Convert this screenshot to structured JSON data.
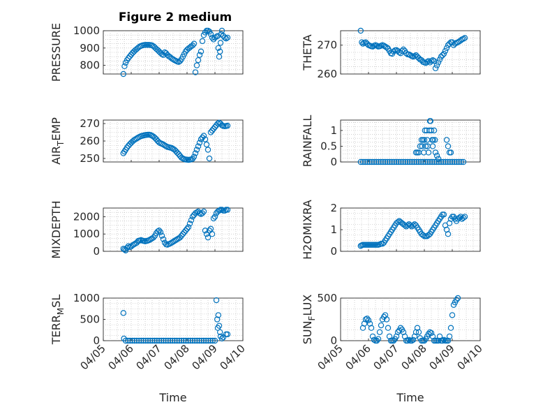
{
  "figure": {
    "title": "Figure 2 medium",
    "color": "#0072BD"
  },
  "chart_data": [
    {
      "type": "scatter",
      "marker": "circle",
      "grid": true,
      "ylabel": "PRESSURE",
      "ylim": [
        750,
        1000
      ],
      "yticks": [
        800,
        900,
        1000
      ],
      "xlim": [
        0,
        5
      ],
      "xticks": [
        0,
        1,
        2,
        3,
        4,
        5
      ],
      "xtick_labels": [],
      "xlabel": "",
      "x": [
        0.72,
        0.76,
        0.8,
        0.85,
        0.9,
        0.95,
        1.0,
        1.05,
        1.1,
        1.15,
        1.2,
        1.25,
        1.3,
        1.35,
        1.4,
        1.45,
        1.5,
        1.55,
        1.6,
        1.65,
        1.7,
        1.75,
        1.8,
        1.85,
        1.9,
        1.95,
        2.0,
        2.05,
        2.1,
        2.15,
        2.2,
        2.25,
        2.3,
        2.35,
        2.4,
        2.45,
        2.5,
        2.55,
        2.6,
        2.65,
        2.7,
        2.75,
        2.8,
        2.85,
        2.9,
        2.95,
        3.0,
        3.05,
        3.1,
        3.15,
        3.2,
        3.25,
        3.3,
        3.35,
        3.4,
        3.45,
        3.5,
        3.55,
        3.6,
        3.65,
        3.7,
        3.75,
        3.8,
        3.85,
        3.9,
        3.95,
        4.0,
        4.05,
        4.1,
        4.12,
        4.15,
        4.18,
        4.2,
        4.22,
        4.25,
        4.3,
        4.35,
        4.4,
        4.45
      ],
      "y": [
        750,
        795,
        815,
        830,
        842,
        852,
        862,
        872,
        880,
        888,
        895,
        902,
        908,
        912,
        915,
        917,
        918,
        918,
        918,
        918,
        917,
        915,
        910,
        903,
        895,
        888,
        880,
        872,
        865,
        860,
        875,
        870,
        860,
        852,
        847,
        840,
        835,
        830,
        826,
        822,
        820,
        825,
        835,
        850,
        865,
        880,
        890,
        897,
        903,
        910,
        915,
        925,
        760,
        800,
        830,
        860,
        880,
        940,
        975,
        990,
        1000,
        1000,
        995,
        980,
        960,
        950,
        960,
        965,
        970,
        900,
        850,
        880,
        930,
        980,
        1000,
        970,
        960,
        955,
        960
      ],
      "y_orig": []
    },
    {
      "type": "scatter",
      "marker": "circle",
      "grid": true,
      "ylabel": "THETA",
      "ylim": [
        260,
        275
      ],
      "yticks": [
        260,
        270
      ],
      "xlim": [
        0,
        5
      ],
      "xticks": [
        0,
        1,
        2,
        3,
        4,
        5
      ],
      "xtick_labels": [],
      "xlabel": "",
      "x": [
        0.72,
        0.76,
        0.8,
        0.85,
        0.9,
        0.95,
        1.0,
        1.05,
        1.1,
        1.15,
        1.2,
        1.25,
        1.3,
        1.35,
        1.4,
        1.45,
        1.5,
        1.55,
        1.6,
        1.65,
        1.7,
        1.75,
        1.8,
        1.85,
        1.9,
        1.95,
        2.0,
        2.05,
        2.1,
        2.15,
        2.2,
        2.25,
        2.3,
        2.35,
        2.4,
        2.45,
        2.5,
        2.55,
        2.6,
        2.65,
        2.7,
        2.75,
        2.8,
        2.85,
        2.9,
        2.95,
        3.0,
        3.05,
        3.1,
        3.15,
        3.2,
        3.25,
        3.3,
        3.35,
        3.4,
        3.45,
        3.5,
        3.55,
        3.6,
        3.65,
        3.7,
        3.75,
        3.8,
        3.85,
        3.9,
        3.95,
        4.0,
        4.05,
        4.1,
        4.15,
        4.2,
        4.25,
        4.3,
        4.35,
        4.4,
        4.45
      ],
      "y": [
        275,
        271,
        270.5,
        270.8,
        271,
        270.5,
        270,
        269.8,
        269.6,
        269.5,
        269.8,
        270,
        269.8,
        269.5,
        269.6,
        269.8,
        270,
        269.8,
        269.5,
        269.2,
        268.8,
        268,
        267.2,
        267,
        267.8,
        268.2,
        268.3,
        268,
        267.5,
        267.2,
        268,
        268.5,
        268,
        267.2,
        266.8,
        266.8,
        266.5,
        266.2,
        266,
        266.2,
        266.5,
        266,
        265.5,
        265,
        264.8,
        264.2,
        264,
        263.8,
        264.2,
        264.5,
        264,
        264.5,
        264.8,
        264.5,
        262,
        263,
        264,
        265,
        266,
        266.5,
        267,
        268,
        269,
        270,
        270.5,
        271,
        271,
        270,
        270.5,
        270.8,
        271,
        271.3,
        271.6,
        272,
        272.2,
        272.5
      ]
    },
    {
      "type": "scatter",
      "marker": "circle",
      "grid": true,
      "ylabel": "AIR",
      "ylabel_sub": "T",
      "ylabel_rest": "EMP",
      "ylim": [
        248,
        272
      ],
      "yticks": [
        250,
        260,
        270
      ],
      "xlim": [
        0,
        5
      ],
      "xticks": [
        0,
        1,
        2,
        3,
        4,
        5
      ],
      "xtick_labels": [],
      "xlabel": "",
      "x": [
        0.72,
        0.76,
        0.8,
        0.85,
        0.9,
        0.95,
        1.0,
        1.05,
        1.1,
        1.15,
        1.2,
        1.25,
        1.3,
        1.35,
        1.4,
        1.45,
        1.5,
        1.55,
        1.6,
        1.65,
        1.7,
        1.75,
        1.8,
        1.85,
        1.9,
        1.95,
        2.0,
        2.05,
        2.1,
        2.15,
        2.2,
        2.25,
        2.3,
        2.35,
        2.4,
        2.45,
        2.5,
        2.55,
        2.6,
        2.65,
        2.7,
        2.75,
        2.8,
        2.85,
        2.9,
        2.95,
        3.0,
        3.05,
        3.1,
        3.15,
        3.2,
        3.25,
        3.3,
        3.35,
        3.4,
        3.45,
        3.5,
        3.55,
        3.6,
        3.65,
        3.7,
        3.75,
        3.8,
        3.85,
        3.9,
        3.95,
        4.0,
        4.05,
        4.1,
        4.15,
        4.2,
        4.25,
        4.3,
        4.35,
        4.4,
        4.45
      ],
      "y": [
        253,
        254,
        255,
        256.2,
        257.3,
        258.2,
        259,
        259.8,
        260.5,
        261,
        261.5,
        262,
        262.4,
        262.8,
        263,
        263.2,
        263.4,
        263.5,
        263.6,
        263.6,
        263.4,
        263,
        262.5,
        261.8,
        261,
        260,
        259.2,
        258.7,
        258.4,
        258,
        257.5,
        257,
        256.6,
        256.4,
        256.2,
        256,
        255.5,
        255,
        254.2,
        253.3,
        252.5,
        251.5,
        250.5,
        250,
        249.6,
        249.4,
        249.3,
        249.2,
        249.3,
        249.5,
        249.8,
        251,
        253,
        255,
        257,
        259,
        261,
        262,
        263,
        261,
        258,
        255,
        250,
        265,
        266,
        267,
        268,
        269,
        270,
        270.5,
        270,
        269,
        268.6,
        268.5,
        268.6,
        268.8
      ]
    },
    {
      "type": "scatter",
      "marker": "circle",
      "grid": true,
      "ylabel": "RAINFALL",
      "ylim": [
        0,
        1.33
      ],
      "yticks": [
        0,
        0.5,
        1
      ],
      "ytick_labels": [
        "0",
        "0.5",
        "1"
      ],
      "xlim": [
        0,
        5
      ],
      "xticks": [
        0,
        1,
        2,
        3,
        4,
        5
      ],
      "xtick_labels": [],
      "xlabel": "",
      "x": [
        0.72,
        0.8,
        0.88,
        0.96,
        1.04,
        1.12,
        1.2,
        1.28,
        1.36,
        1.44,
        1.52,
        1.6,
        1.68,
        1.76,
        1.84,
        1.92,
        2.0,
        2.08,
        2.16,
        2.24,
        2.32,
        2.4,
        2.48,
        2.56,
        2.64,
        2.72,
        2.8,
        2.88,
        2.96,
        3.04,
        3.12,
        3.2,
        3.28,
        3.36,
        3.44,
        3.52,
        3.6,
        3.68,
        3.76,
        3.84,
        3.92,
        4.0,
        4.08,
        4.16,
        4.24,
        4.32,
        4.4,
        2.7,
        2.75,
        2.8,
        2.85,
        2.9,
        2.92,
        2.95,
        2.98,
        3.0,
        3.02,
        3.05,
        3.08,
        3.1,
        3.12,
        3.15,
        3.18,
        3.2,
        3.22,
        3.25,
        3.28,
        3.3,
        3.32,
        3.35,
        3.38,
        3.4,
        3.45,
        3.5,
        3.8,
        3.85,
        3.9,
        3.95
      ],
      "y": [
        0,
        0,
        0,
        0,
        0,
        0,
        0,
        0,
        0,
        0,
        0,
        0,
        0,
        0,
        0,
        0,
        0,
        0,
        0,
        0,
        0,
        0,
        0,
        0,
        0,
        0,
        0,
        0,
        0,
        0,
        0,
        0,
        0,
        0,
        0,
        0,
        0,
        0,
        0,
        0,
        0,
        0,
        0,
        0,
        0,
        0,
        0,
        0.3,
        0.3,
        0.3,
        0.5,
        0.7,
        0.5,
        0.7,
        0.3,
        0.7,
        1.0,
        0.5,
        1.0,
        0.7,
        0.5,
        0.3,
        1.0,
        1.3,
        1.3,
        1.0,
        0.7,
        0.5,
        0.7,
        1.0,
        0.7,
        0.3,
        0.2,
        0.1,
        0.7,
        0.5,
        0.3,
        0.3
      ]
    },
    {
      "type": "scatter",
      "marker": "circle",
      "grid": true,
      "ylabel": "MIXDEPTH",
      "ylim": [
        0,
        2500
      ],
      "yticks": [
        0,
        1000,
        2000
      ],
      "xlim": [
        0,
        5
      ],
      "xticks": [
        0,
        1,
        2,
        3,
        4,
        5
      ],
      "xtick_labels": [],
      "xlabel": "",
      "x": [
        0.72,
        0.76,
        0.8,
        0.85,
        0.9,
        0.95,
        1.0,
        1.05,
        1.1,
        1.15,
        1.2,
        1.25,
        1.3,
        1.35,
        1.4,
        1.45,
        1.5,
        1.55,
        1.6,
        1.65,
        1.7,
        1.75,
        1.8,
        1.85,
        1.9,
        1.95,
        2.0,
        2.05,
        2.1,
        2.15,
        2.2,
        2.25,
        2.3,
        2.35,
        2.4,
        2.45,
        2.5,
        2.55,
        2.6,
        2.65,
        2.7,
        2.75,
        2.8,
        2.85,
        2.9,
        2.95,
        3.0,
        3.05,
        3.1,
        3.15,
        3.2,
        3.25,
        3.3,
        3.35,
        3.4,
        3.45,
        3.5,
        3.55,
        3.6,
        3.65,
        3.7,
        3.75,
        3.8,
        3.85,
        3.9,
        3.95,
        4.0,
        4.05,
        4.1,
        4.15,
        4.2,
        4.25,
        4.3,
        4.35,
        4.4,
        4.45
      ],
      "y": [
        150,
        100,
        50,
        200,
        300,
        250,
        280,
        350,
        400,
        450,
        500,
        600,
        620,
        650,
        620,
        600,
        580,
        600,
        620,
        650,
        700,
        750,
        800,
        900,
        1050,
        1150,
        1200,
        1100,
        900,
        700,
        500,
        400,
        380,
        420,
        450,
        500,
        550,
        600,
        650,
        700,
        750,
        800,
        900,
        1000,
        1100,
        1200,
        1300,
        1400,
        1600,
        1800,
        2000,
        2100,
        2200,
        2250,
        2300,
        2200,
        2150,
        2200,
        2300,
        1200,
        1000,
        800,
        1200,
        1300,
        1000,
        1900,
        2000,
        2200,
        2300,
        2350,
        2400,
        2400,
        2350,
        2350,
        2400,
        2400
      ]
    },
    {
      "type": "scatter",
      "marker": "circle",
      "grid": true,
      "ylabel": "H2OMIXRA",
      "ylim": [
        0,
        2
      ],
      "yticks": [
        0,
        1,
        2
      ],
      "xlim": [
        0,
        5
      ],
      "xticks": [
        0,
        1,
        2,
        3,
        4,
        5
      ],
      "xtick_labels": [],
      "xlabel": "",
      "x": [
        0.72,
        0.76,
        0.8,
        0.85,
        0.9,
        0.95,
        1.0,
        1.05,
        1.1,
        1.15,
        1.2,
        1.25,
        1.3,
        1.35,
        1.4,
        1.45,
        1.5,
        1.55,
        1.6,
        1.65,
        1.7,
        1.75,
        1.8,
        1.85,
        1.9,
        1.95,
        2.0,
        2.05,
        2.1,
        2.15,
        2.2,
        2.25,
        2.3,
        2.35,
        2.4,
        2.45,
        2.5,
        2.55,
        2.6,
        2.65,
        2.7,
        2.75,
        2.8,
        2.85,
        2.9,
        2.95,
        3.0,
        3.05,
        3.1,
        3.15,
        3.2,
        3.25,
        3.3,
        3.35,
        3.4,
        3.45,
        3.5,
        3.55,
        3.6,
        3.65,
        3.7,
        3.75,
        3.8,
        3.85,
        3.9,
        3.95,
        4.0,
        4.05,
        4.1,
        4.15,
        4.2,
        4.25,
        4.3,
        4.35,
        4.4,
        4.45
      ],
      "y": [
        0.25,
        0.28,
        0.3,
        0.3,
        0.3,
        0.3,
        0.3,
        0.3,
        0.3,
        0.3,
        0.3,
        0.3,
        0.3,
        0.3,
        0.32,
        0.35,
        0.35,
        0.4,
        0.5,
        0.6,
        0.7,
        0.8,
        0.9,
        1.0,
        1.1,
        1.2,
        1.3,
        1.35,
        1.4,
        1.35,
        1.3,
        1.25,
        1.2,
        1.15,
        1.2,
        1.25,
        1.2,
        1.15,
        1.2,
        1.25,
        1.2,
        1.1,
        1.0,
        0.9,
        0.8,
        0.75,
        0.7,
        0.7,
        0.7,
        0.75,
        0.8,
        0.9,
        1.0,
        1.1,
        1.2,
        1.3,
        1.4,
        1.5,
        1.6,
        1.7,
        1.7,
        1.2,
        1.0,
        0.8,
        1.3,
        1.5,
        1.6,
        1.6,
        1.5,
        1.4,
        1.5,
        1.55,
        1.6,
        1.5,
        1.55,
        1.6
      ]
    },
    {
      "type": "scatter",
      "marker": "circle",
      "grid": true,
      "ylabel": "TERR",
      "ylabel_sub": "M",
      "ylabel_rest": "SL",
      "ylim": [
        0,
        1000
      ],
      "yticks": [
        0,
        500,
        1000
      ],
      "xlim": [
        0,
        5
      ],
      "xticks": [
        0,
        1,
        2,
        3,
        4,
        5
      ],
      "xtick_labels": [
        "04/05",
        "04/06",
        "04/07",
        "04/08",
        "04/09",
        "04/10"
      ],
      "xlabel": "Time",
      "x": [
        0.72,
        0.74,
        0.8,
        0.88,
        0.96,
        1.04,
        1.12,
        1.2,
        1.28,
        1.36,
        1.44,
        1.52,
        1.6,
        1.68,
        1.76,
        1.84,
        1.92,
        2.0,
        2.08,
        2.16,
        2.24,
        2.32,
        2.4,
        2.48,
        2.56,
        2.64,
        2.72,
        2.8,
        2.88,
        2.96,
        3.04,
        3.12,
        3.2,
        3.28,
        3.36,
        3.44,
        3.52,
        3.6,
        3.68,
        3.76,
        3.84,
        3.92,
        4.0,
        4.05,
        4.08,
        4.1,
        4.12,
        4.15,
        4.18,
        4.2,
        4.25,
        4.3,
        4.4,
        4.45
      ],
      "y": [
        650,
        50,
        0,
        0,
        0,
        0,
        0,
        0,
        0,
        0,
        0,
        0,
        0,
        0,
        0,
        0,
        0,
        0,
        0,
        0,
        0,
        0,
        0,
        0,
        0,
        0,
        0,
        0,
        0,
        0,
        0,
        0,
        0,
        0,
        0,
        0,
        0,
        0,
        0,
        0,
        0,
        0,
        0,
        950,
        500,
        300,
        600,
        350,
        200,
        100,
        50,
        80,
        150,
        150
      ]
    },
    {
      "type": "scatter",
      "marker": "circle",
      "grid": true,
      "ylabel": "SUN",
      "ylabel_sub": "F",
      "ylabel_rest": "LUX",
      "ylim": [
        0,
        500
      ],
      "yticks": [
        0,
        500
      ],
      "xlim": [
        0,
        5
      ],
      "xticks": [
        0,
        1,
        2,
        3,
        4,
        5
      ],
      "xtick_labels": [
        "04/05",
        "04/06",
        "04/07",
        "04/08",
        "04/09",
        "04/10"
      ],
      "xlabel": "Time",
      "x": [
        0.8,
        0.85,
        0.9,
        0.95,
        1.0,
        1.05,
        1.1,
        1.15,
        1.2,
        1.25,
        1.3,
        1.35,
        1.4,
        1.45,
        1.5,
        1.55,
        1.6,
        1.65,
        1.7,
        1.75,
        1.8,
        1.85,
        1.9,
        1.95,
        2.0,
        2.05,
        2.1,
        2.15,
        2.2,
        2.25,
        2.3,
        2.35,
        2.4,
        2.45,
        2.5,
        2.55,
        2.6,
        2.65,
        2.7,
        2.75,
        2.8,
        2.85,
        2.9,
        2.95,
        3.0,
        3.05,
        3.1,
        3.15,
        3.2,
        3.25,
        3.3,
        3.35,
        3.4,
        3.45,
        3.5,
        3.55,
        3.6,
        3.65,
        3.7,
        3.75,
        3.8,
        3.85,
        3.9,
        3.95,
        4.0,
        4.05,
        4.1,
        4.15,
        4.2
      ],
      "y": [
        150,
        200,
        250,
        260,
        240,
        200,
        150,
        50,
        10,
        0,
        0,
        20,
        100,
        180,
        250,
        280,
        300,
        250,
        150,
        50,
        0,
        0,
        0,
        20,
        50,
        100,
        120,
        150,
        130,
        100,
        50,
        0,
        0,
        10,
        0,
        0,
        10,
        50,
        100,
        150,
        100,
        30,
        0,
        0,
        0,
        20,
        50,
        80,
        100,
        90,
        50,
        0,
        0,
        0,
        0,
        50,
        0,
        0,
        10,
        0,
        0,
        0,
        50,
        150,
        300,
        420,
        450,
        480,
        500
      ]
    }
  ]
}
